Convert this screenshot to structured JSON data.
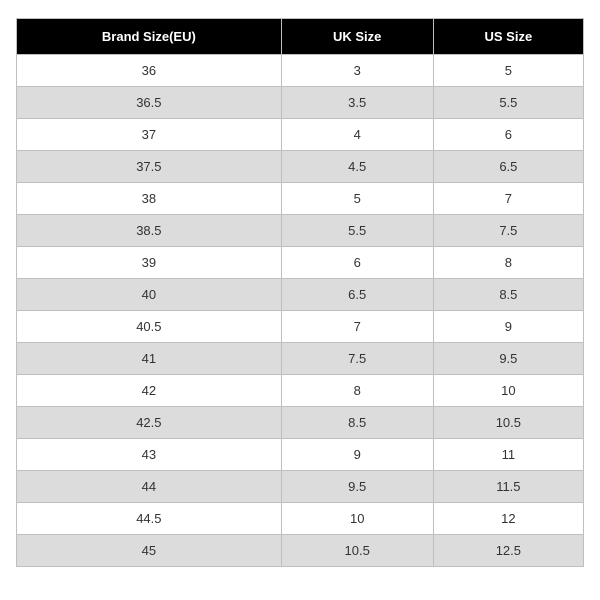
{
  "size_table": {
    "type": "table",
    "columns": [
      "Brand Size(EU)",
      "UK Size",
      "US Size"
    ],
    "rows": [
      [
        "36",
        "3",
        "5"
      ],
      [
        "36.5",
        "3.5",
        "5.5"
      ],
      [
        "37",
        "4",
        "6"
      ],
      [
        "37.5",
        "4.5",
        "6.5"
      ],
      [
        "38",
        "5",
        "7"
      ],
      [
        "38.5",
        "5.5",
        "7.5"
      ],
      [
        "39",
        "6",
        "8"
      ],
      [
        "40",
        "6.5",
        "8.5"
      ],
      [
        "40.5",
        "7",
        "9"
      ],
      [
        "41",
        "7.5",
        "9.5"
      ],
      [
        "42",
        "8",
        "10"
      ],
      [
        "42.5",
        "8.5",
        "10.5"
      ],
      [
        "43",
        "9",
        "11"
      ],
      [
        "44",
        "9.5",
        "11.5"
      ],
      [
        "44.5",
        "10",
        "12"
      ],
      [
        "45",
        "10.5",
        "12.5"
      ]
    ],
    "header_bg": "#000000",
    "header_fg": "#ffffff",
    "row_odd_bg": "#ffffff",
    "row_even_bg": "#dcdcdc",
    "grid_color": "#bfbfbf",
    "header_fontsize": 14,
    "cell_fontsize": 13
  }
}
